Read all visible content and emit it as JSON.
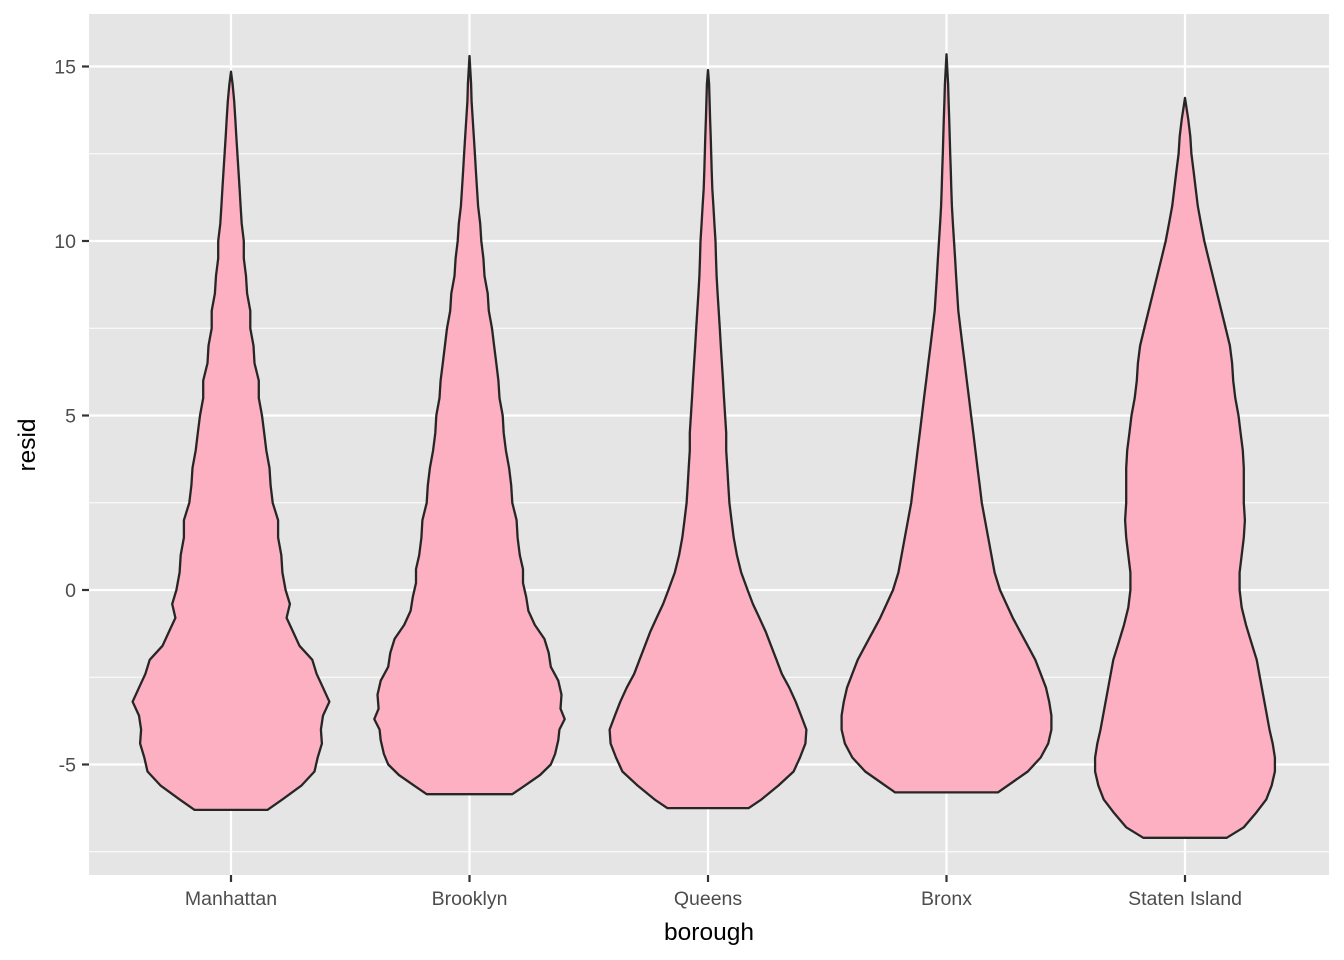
{
  "chart_data": {
    "type": "violin",
    "xlabel": "borough",
    "ylabel": "resid",
    "categories": [
      "Manhattan",
      "Brooklyn",
      "Queens",
      "Bronx",
      "Staten Island"
    ],
    "ylim": [
      -7.5,
      16.2
    ],
    "yticks": [
      -5,
      0,
      5,
      10,
      15
    ],
    "ytick_labels": [
      "-5",
      "0",
      "5",
      "10",
      "15"
    ],
    "grid": true,
    "legend": "none",
    "colors": {
      "panel_background": "#e5e5e5",
      "grid": "#ffffff",
      "violin_fill": "#fdb0c2",
      "violin_outline": "#262626"
    },
    "violins": [
      {
        "category": "Manhattan",
        "min": -6.3,
        "max": 14.85,
        "profile": [
          [
            -6.3,
            0.34
          ],
          [
            -6.0,
            0.48
          ],
          [
            -5.6,
            0.66
          ],
          [
            -5.2,
            0.78
          ],
          [
            -4.8,
            0.81
          ],
          [
            -4.4,
            0.85
          ],
          [
            -4.0,
            0.84
          ],
          [
            -3.6,
            0.86
          ],
          [
            -3.2,
            0.92
          ],
          [
            -2.8,
            0.86
          ],
          [
            -2.4,
            0.8
          ],
          [
            -2.0,
            0.76
          ],
          [
            -1.6,
            0.64
          ],
          [
            -1.2,
            0.58
          ],
          [
            -0.8,
            0.52
          ],
          [
            -0.4,
            0.55
          ],
          [
            0.0,
            0.51
          ],
          [
            0.5,
            0.48
          ],
          [
            1.0,
            0.47
          ],
          [
            1.5,
            0.44
          ],
          [
            2.0,
            0.44
          ],
          [
            2.5,
            0.39
          ],
          [
            3.0,
            0.37
          ],
          [
            3.5,
            0.36
          ],
          [
            4.0,
            0.33
          ],
          [
            4.5,
            0.31
          ],
          [
            5.0,
            0.29
          ],
          [
            5.5,
            0.26
          ],
          [
            6.0,
            0.26
          ],
          [
            6.5,
            0.22
          ],
          [
            7.0,
            0.21
          ],
          [
            7.5,
            0.18
          ],
          [
            8.0,
            0.18
          ],
          [
            8.5,
            0.15
          ],
          [
            9.0,
            0.14
          ],
          [
            9.5,
            0.12
          ],
          [
            10.0,
            0.12
          ],
          [
            10.5,
            0.1
          ],
          [
            11.0,
            0.09
          ],
          [
            11.5,
            0.08
          ],
          [
            12.0,
            0.07
          ],
          [
            12.5,
            0.06
          ],
          [
            13.0,
            0.05
          ],
          [
            13.5,
            0.04
          ],
          [
            14.0,
            0.03
          ],
          [
            14.5,
            0.015
          ],
          [
            14.85,
            0.0
          ]
        ]
      },
      {
        "category": "Brooklyn",
        "min": -5.85,
        "max": 15.3,
        "profile": [
          [
            -5.85,
            0.4
          ],
          [
            -5.6,
            0.52
          ],
          [
            -5.3,
            0.66
          ],
          [
            -5.0,
            0.76
          ],
          [
            -4.7,
            0.8
          ],
          [
            -4.3,
            0.83
          ],
          [
            -4.0,
            0.84
          ],
          [
            -3.7,
            0.89
          ],
          [
            -3.4,
            0.85
          ],
          [
            -3.0,
            0.86
          ],
          [
            -2.6,
            0.83
          ],
          [
            -2.2,
            0.76
          ],
          [
            -1.8,
            0.74
          ],
          [
            -1.4,
            0.7
          ],
          [
            -1.0,
            0.61
          ],
          [
            -0.6,
            0.55
          ],
          [
            -0.2,
            0.53
          ],
          [
            0.2,
            0.5
          ],
          [
            0.6,
            0.5
          ],
          [
            1.0,
            0.47
          ],
          [
            1.5,
            0.45
          ],
          [
            2.0,
            0.44
          ],
          [
            2.5,
            0.4
          ],
          [
            3.0,
            0.39
          ],
          [
            3.5,
            0.37
          ],
          [
            4.0,
            0.34
          ],
          [
            4.5,
            0.32
          ],
          [
            5.0,
            0.31
          ],
          [
            5.5,
            0.28
          ],
          [
            6.0,
            0.27
          ],
          [
            6.5,
            0.25
          ],
          [
            7.0,
            0.23
          ],
          [
            7.5,
            0.21
          ],
          [
            8.0,
            0.18
          ],
          [
            8.5,
            0.17
          ],
          [
            9.0,
            0.14
          ],
          [
            9.5,
            0.13
          ],
          [
            10.0,
            0.11
          ],
          [
            10.5,
            0.1
          ],
          [
            11.0,
            0.08
          ],
          [
            11.5,
            0.07
          ],
          [
            12.0,
            0.06
          ],
          [
            12.5,
            0.05
          ],
          [
            13.0,
            0.04
          ],
          [
            13.5,
            0.03
          ],
          [
            14.0,
            0.02
          ],
          [
            14.5,
            0.015
          ],
          [
            15.3,
            0.0
          ]
        ]
      },
      {
        "category": "Queens",
        "min": -6.25,
        "max": 14.9,
        "profile": [
          [
            -6.25,
            0.38
          ],
          [
            -6.0,
            0.5
          ],
          [
            -5.6,
            0.66
          ],
          [
            -5.2,
            0.8
          ],
          [
            -4.8,
            0.86
          ],
          [
            -4.4,
            0.91
          ],
          [
            -4.0,
            0.92
          ],
          [
            -3.6,
            0.87
          ],
          [
            -3.2,
            0.82
          ],
          [
            -2.8,
            0.76
          ],
          [
            -2.4,
            0.69
          ],
          [
            -2.0,
            0.64
          ],
          [
            -1.6,
            0.59
          ],
          [
            -1.2,
            0.54
          ],
          [
            -0.8,
            0.48
          ],
          [
            -0.4,
            0.42
          ],
          [
            0.0,
            0.37
          ],
          [
            0.5,
            0.31
          ],
          [
            1.0,
            0.27
          ],
          [
            1.5,
            0.24
          ],
          [
            2.0,
            0.22
          ],
          [
            2.5,
            0.2
          ],
          [
            3.0,
            0.19
          ],
          [
            3.5,
            0.18
          ],
          [
            4.0,
            0.17
          ],
          [
            4.5,
            0.17
          ],
          [
            5.0,
            0.16
          ],
          [
            5.5,
            0.15
          ],
          [
            6.0,
            0.14
          ],
          [
            6.5,
            0.13
          ],
          [
            7.0,
            0.12
          ],
          [
            7.5,
            0.11
          ],
          [
            8.0,
            0.1
          ],
          [
            8.5,
            0.09
          ],
          [
            9.0,
            0.08
          ],
          [
            9.5,
            0.075
          ],
          [
            10.0,
            0.07
          ],
          [
            10.5,
            0.06
          ],
          [
            11.0,
            0.05
          ],
          [
            11.5,
            0.04
          ],
          [
            12.0,
            0.035
          ],
          [
            12.5,
            0.03
          ],
          [
            13.0,
            0.025
          ],
          [
            13.5,
            0.02
          ],
          [
            14.0,
            0.015
          ],
          [
            14.5,
            0.01
          ],
          [
            14.9,
            0.0
          ]
        ]
      },
      {
        "category": "Bronx",
        "min": -5.8,
        "max": 15.35,
        "profile": [
          [
            -5.8,
            0.48
          ],
          [
            -5.5,
            0.62
          ],
          [
            -5.2,
            0.76
          ],
          [
            -4.8,
            0.88
          ],
          [
            -4.4,
            0.95
          ],
          [
            -4.0,
            0.98
          ],
          [
            -3.6,
            0.98
          ],
          [
            -3.2,
            0.96
          ],
          [
            -2.8,
            0.93
          ],
          [
            -2.4,
            0.88
          ],
          [
            -2.0,
            0.83
          ],
          [
            -1.6,
            0.76
          ],
          [
            -1.2,
            0.69
          ],
          [
            -0.8,
            0.62
          ],
          [
            -0.4,
            0.56
          ],
          [
            0.0,
            0.5
          ],
          [
            0.5,
            0.45
          ],
          [
            1.0,
            0.42
          ],
          [
            1.5,
            0.39
          ],
          [
            2.0,
            0.36
          ],
          [
            2.5,
            0.33
          ],
          [
            3.0,
            0.31
          ],
          [
            3.5,
            0.29
          ],
          [
            4.0,
            0.27
          ],
          [
            4.5,
            0.25
          ],
          [
            5.0,
            0.23
          ],
          [
            5.5,
            0.21
          ],
          [
            6.0,
            0.19
          ],
          [
            6.5,
            0.17
          ],
          [
            7.0,
            0.15
          ],
          [
            7.5,
            0.13
          ],
          [
            8.0,
            0.11
          ],
          [
            8.5,
            0.1
          ],
          [
            9.0,
            0.09
          ],
          [
            9.5,
            0.08
          ],
          [
            10.0,
            0.07
          ],
          [
            10.5,
            0.06
          ],
          [
            11.0,
            0.05
          ],
          [
            11.5,
            0.045
          ],
          [
            12.0,
            0.04
          ],
          [
            12.5,
            0.035
          ],
          [
            13.0,
            0.03
          ],
          [
            13.5,
            0.025
          ],
          [
            14.0,
            0.02
          ],
          [
            14.5,
            0.015
          ],
          [
            15.35,
            0.0
          ]
        ]
      },
      {
        "category": "Staten Island",
        "min": -7.1,
        "max": 14.1,
        "profile": [
          [
            -7.1,
            0.39
          ],
          [
            -6.8,
            0.55
          ],
          [
            -6.4,
            0.66
          ],
          [
            -6.0,
            0.76
          ],
          [
            -5.6,
            0.81
          ],
          [
            -5.2,
            0.84
          ],
          [
            -4.8,
            0.84
          ],
          [
            -4.4,
            0.82
          ],
          [
            -4.0,
            0.79
          ],
          [
            -3.5,
            0.76
          ],
          [
            -3.0,
            0.73
          ],
          [
            -2.5,
            0.7
          ],
          [
            -2.0,
            0.67
          ],
          [
            -1.5,
            0.62
          ],
          [
            -1.0,
            0.57
          ],
          [
            -0.5,
            0.53
          ],
          [
            0.0,
            0.51
          ],
          [
            0.5,
            0.51
          ],
          [
            1.0,
            0.53
          ],
          [
            1.5,
            0.55
          ],
          [
            2.0,
            0.56
          ],
          [
            2.5,
            0.55
          ],
          [
            3.0,
            0.55
          ],
          [
            3.5,
            0.55
          ],
          [
            4.0,
            0.54
          ],
          [
            4.5,
            0.52
          ],
          [
            5.0,
            0.5
          ],
          [
            5.5,
            0.47
          ],
          [
            6.0,
            0.45
          ],
          [
            6.5,
            0.44
          ],
          [
            7.0,
            0.42
          ],
          [
            7.5,
            0.38
          ],
          [
            8.0,
            0.34
          ],
          [
            8.5,
            0.3
          ],
          [
            9.0,
            0.26
          ],
          [
            9.5,
            0.22
          ],
          [
            10.0,
            0.18
          ],
          [
            10.5,
            0.15
          ],
          [
            11.0,
            0.12
          ],
          [
            11.5,
            0.1
          ],
          [
            12.0,
            0.08
          ],
          [
            12.5,
            0.06
          ],
          [
            13.0,
            0.05
          ],
          [
            13.5,
            0.03
          ],
          [
            14.1,
            0.0
          ]
        ]
      }
    ]
  }
}
